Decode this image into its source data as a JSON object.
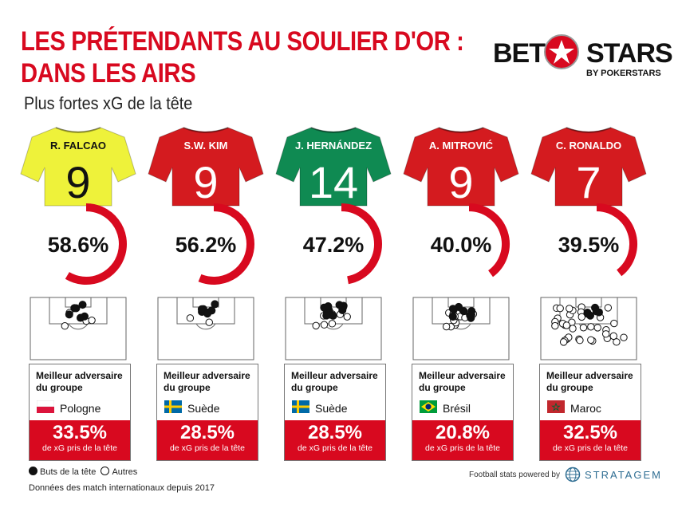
{
  "title_line1": "LES PRÉTENDANTS AU SOULIER D'OR :",
  "title_line2": "DANS LES AIRS",
  "subtitle": "Plus fortes xG de la tête",
  "brand": {
    "bet": "BET",
    "stars": "STARS",
    "by": "BY POKERSTARS"
  },
  "opponent_label_1": "Meilleur adversaire",
  "opponent_label_2": "du groupe",
  "card_stat_label": "de xG pris de la tête",
  "legend": {
    "headers": "Buts de la tête",
    "others": "Autres"
  },
  "note": "Données des match internationaux depuis 2017",
  "powered_by": "Football stats powered by",
  "stratagem": "STRATAGEM",
  "chart_data": {
    "type": "donut",
    "series_label": "Plus fortes xG de la tête",
    "players": [
      {
        "name": "R. FALCAO",
        "number": "9",
        "shirt": "#eef23a",
        "text_color": "#111111",
        "xg_head_pct": 58.6,
        "label": "58.6%",
        "opponent": "Pologne",
        "flag": "poland",
        "opponent_pct": 33.5,
        "opponent_label": "33.5%",
        "headers": 6,
        "others": 4
      },
      {
        "name": "S.W. KIM",
        "number": "9",
        "shirt": "#d41b1f",
        "text_color": "#ffffff",
        "xg_head_pct": 56.2,
        "label": "56.2%",
        "opponent": "Suède",
        "flag": "sweden",
        "opponent_pct": 28.5,
        "opponent_label": "28.5%",
        "headers": 7,
        "others": 2
      },
      {
        "name": "J. HERNÁNDEZ",
        "number": "14",
        "shirt": "#0f8a52",
        "text_color": "#ffffff",
        "xg_head_pct": 47.2,
        "label": "47.2%",
        "opponent": "Suède",
        "flag": "sweden",
        "opponent_pct": 28.5,
        "opponent_label": "28.5%",
        "headers": 14,
        "others": 8
      },
      {
        "name": "A. MITROVIĆ",
        "number": "9",
        "shirt": "#d41b1f",
        "text_color": "#ffffff",
        "xg_head_pct": 40.0,
        "label": "40.0%",
        "opponent": "Brésil",
        "flag": "brazil",
        "opponent_pct": 20.8,
        "opponent_label": "20.8%",
        "headers": 10,
        "others": 12
      },
      {
        "name": "C. RONALDO",
        "number": "7",
        "shirt": "#d41b1f",
        "text_color": "#ffffff",
        "xg_head_pct": 39.5,
        "label": "39.5%",
        "opponent": "Maroc",
        "flag": "morocco",
        "opponent_pct": 32.5,
        "opponent_label": "32.5%",
        "headers": 6,
        "others": 36
      }
    ]
  }
}
